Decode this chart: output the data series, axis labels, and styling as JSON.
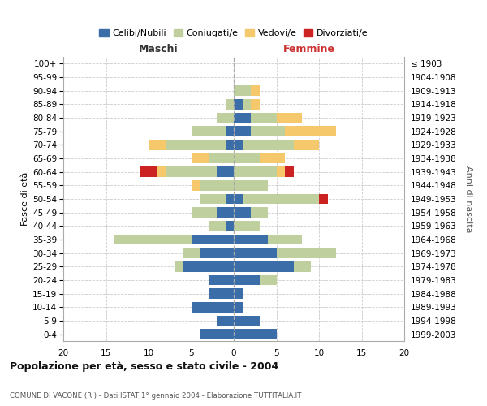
{
  "age_groups": [
    "0-4",
    "5-9",
    "10-14",
    "15-19",
    "20-24",
    "25-29",
    "30-34",
    "35-39",
    "40-44",
    "45-49",
    "50-54",
    "55-59",
    "60-64",
    "65-69",
    "70-74",
    "75-79",
    "80-84",
    "85-89",
    "90-94",
    "95-99",
    "100+"
  ],
  "birth_years": [
    "1999-2003",
    "1994-1998",
    "1989-1993",
    "1984-1988",
    "1979-1983",
    "1974-1978",
    "1969-1973",
    "1964-1968",
    "1959-1963",
    "1954-1958",
    "1949-1953",
    "1944-1948",
    "1939-1943",
    "1934-1938",
    "1929-1933",
    "1924-1928",
    "1919-1923",
    "1914-1918",
    "1909-1913",
    "1904-1908",
    "≤ 1903"
  ],
  "male_celibi": [
    4,
    2,
    5,
    3,
    3,
    6,
    4,
    5,
    1,
    2,
    1,
    0,
    2,
    0,
    1,
    1,
    0,
    0,
    0,
    0,
    0
  ],
  "male_coniugati": [
    0,
    0,
    0,
    0,
    0,
    1,
    2,
    9,
    2,
    3,
    3,
    4,
    6,
    3,
    7,
    4,
    2,
    1,
    0,
    0,
    0
  ],
  "male_vedovi": [
    0,
    0,
    0,
    0,
    0,
    0,
    0,
    0,
    0,
    0,
    0,
    1,
    1,
    2,
    2,
    0,
    0,
    0,
    0,
    0,
    0
  ],
  "male_divorziati": [
    0,
    0,
    0,
    0,
    0,
    0,
    0,
    0,
    0,
    0,
    0,
    0,
    2,
    0,
    0,
    0,
    0,
    0,
    0,
    0,
    0
  ],
  "female_celibi": [
    5,
    3,
    1,
    1,
    3,
    7,
    5,
    4,
    0,
    2,
    1,
    0,
    0,
    0,
    1,
    2,
    2,
    1,
    0,
    0,
    0
  ],
  "female_coniugati": [
    0,
    0,
    0,
    0,
    2,
    2,
    7,
    4,
    3,
    2,
    9,
    4,
    5,
    3,
    6,
    4,
    3,
    1,
    2,
    0,
    0
  ],
  "female_vedovi": [
    0,
    0,
    0,
    0,
    0,
    0,
    0,
    0,
    0,
    0,
    0,
    0,
    1,
    3,
    3,
    6,
    3,
    1,
    1,
    0,
    0
  ],
  "female_divorziati": [
    0,
    0,
    0,
    0,
    0,
    0,
    0,
    0,
    0,
    0,
    1,
    0,
    1,
    0,
    0,
    0,
    0,
    0,
    0,
    0,
    0
  ],
  "color_celibi": "#3B6EA8",
  "color_coniugati": "#BFCF9E",
  "color_vedovi": "#F5C96B",
  "color_divorziati": "#CC2222",
  "title": "Popolazione per età, sesso e stato civile - 2004",
  "subtitle": "COMUNE DI VACONE (RI) - Dati ISTAT 1° gennaio 2004 - Elaborazione TUTTITALIA.IT",
  "xlabel_left": "Maschi",
  "xlabel_right": "Femmine",
  "ylabel_left": "Fasce di età",
  "ylabel_right": "Anni di nascita",
  "xlim": 20,
  "bg_color": "#FFFFFF",
  "grid_color": "#CCCCCC"
}
